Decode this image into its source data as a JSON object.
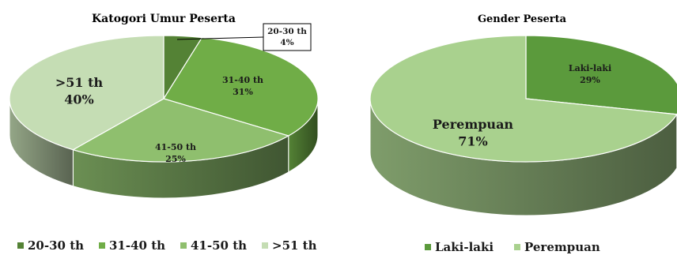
{
  "chart_data": [
    {
      "type": "pie",
      "title": "Katogori Umur Peserta",
      "categories": [
        "20-30 th",
        "31-40 th",
        "41-50 th",
        ">51 th"
      ],
      "values": [
        4,
        31,
        25,
        40
      ],
      "value_labels": [
        "4%",
        "31%",
        "25%",
        "40%"
      ],
      "colors": [
        "#548235",
        "#70AD47",
        "#8FBF6E",
        "#C5DDB4"
      ],
      "legend": "bottom",
      "style": "3d"
    },
    {
      "type": "pie",
      "title": "Gender Peserta",
      "categories": [
        "Laki-laki",
        "Perempuan"
      ],
      "values": [
        29,
        71
      ],
      "value_labels": [
        "29%",
        "71%"
      ],
      "colors": [
        "#5B9A3C",
        "#A9D18E"
      ],
      "legend": "bottom",
      "style": "3d"
    }
  ]
}
